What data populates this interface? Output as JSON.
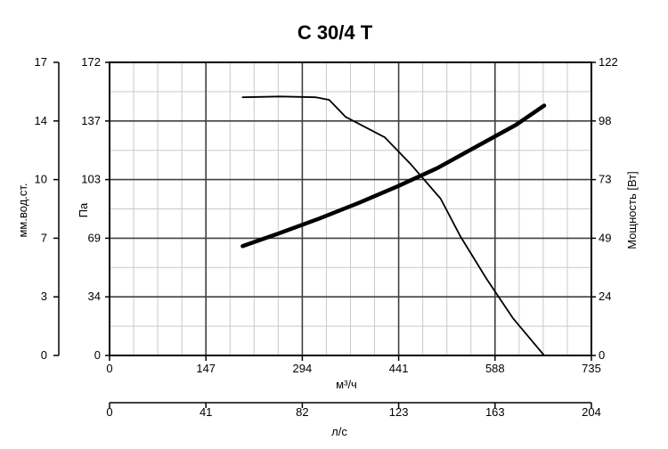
{
  "chart_data": {
    "type": "line",
    "title": "C 30/4 T",
    "xlabel": "м³/ч",
    "x2label": "л/с",
    "ylabel": "Па",
    "y_left_label": "мм.вод.ст.",
    "y2label": "Мощность [Вт]",
    "xlim": [
      0,
      735
    ],
    "ylim": [
      0,
      172
    ],
    "y2lim": [
      0,
      122
    ],
    "x_ticks": [
      "0",
      "147",
      "294",
      "441",
      "588",
      "735"
    ],
    "x2_ticks": [
      "0",
      "41",
      "82",
      "123",
      "163",
      "204"
    ],
    "y_ticks": [
      "0",
      "34",
      "69",
      "103",
      "137",
      "172"
    ],
    "y_left_ticks": [
      "0",
      "3",
      "7",
      "10",
      "14",
      "17"
    ],
    "y2_ticks": [
      "0",
      "24",
      "49",
      "73",
      "98",
      "122"
    ],
    "grid": true,
    "series": [
      {
        "name": "",
        "axis": "left",
        "values_x": [
          203,
          260,
          315,
          335,
          360,
          420,
          460,
          505,
          535,
          575,
          615,
          663
        ],
        "values_y": [
          151.5,
          152,
          151.5,
          150,
          140,
          128,
          112,
          92,
          70,
          45,
          22,
          0
        ]
      },
      {
        "name": "",
        "axis": "right",
        "values_x": [
          203,
          260,
          320,
          380,
          440,
          500,
          560,
          620,
          663
        ],
        "values_y": [
          45.5,
          51,
          57,
          63.5,
          70.5,
          78,
          87,
          96,
          104
        ]
      }
    ]
  }
}
